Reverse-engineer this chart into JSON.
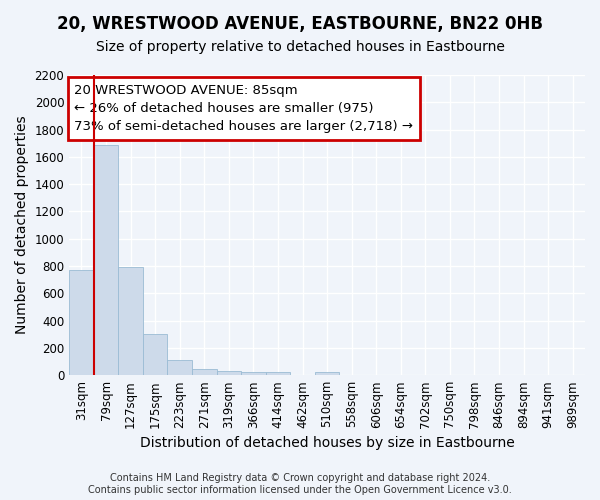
{
  "title": "20, WRESTWOOD AVENUE, EASTBOURNE, BN22 0HB",
  "subtitle": "Size of property relative to detached houses in Eastbourne",
  "xlabel": "Distribution of detached houses by size in Eastbourne",
  "ylabel": "Number of detached properties",
  "footnote": "Contains HM Land Registry data © Crown copyright and database right 2024.\nContains public sector information licensed under the Open Government Licence v3.0.",
  "categories": [
    "31sqm",
    "79sqm",
    "127sqm",
    "175sqm",
    "223sqm",
    "271sqm",
    "319sqm",
    "366sqm",
    "414sqm",
    "462sqm",
    "510sqm",
    "558sqm",
    "606sqm",
    "654sqm",
    "702sqm",
    "750sqm",
    "798sqm",
    "846sqm",
    "894sqm",
    "941sqm",
    "989sqm"
  ],
  "values": [
    770,
    1690,
    795,
    300,
    110,
    42,
    32,
    25,
    22,
    0,
    22,
    0,
    0,
    0,
    0,
    0,
    0,
    0,
    0,
    0,
    0
  ],
  "bar_color": "#cddaea",
  "bar_edge_color": "#9bbcd4",
  "property_line_x": 0.5,
  "annotation_title": "20 WRESTWOOD AVENUE: 85sqm",
  "annotation_line1": "← 26% of detached houses are smaller (975)",
  "annotation_line2": "73% of semi-detached houses are larger (2,718) →",
  "annotation_color": "#cc0000",
  "ylim": [
    0,
    2200
  ],
  "yticks": [
    0,
    200,
    400,
    600,
    800,
    1000,
    1200,
    1400,
    1600,
    1800,
    2000,
    2200
  ],
  "background_color": "#f0f4fa",
  "plot_bg_color": "#f0f4fa",
  "grid_color": "#ffffff",
  "title_fontsize": 12,
  "subtitle_fontsize": 10,
  "axis_label_fontsize": 10,
  "tick_fontsize": 8.5,
  "annotation_fontsize": 9.5
}
